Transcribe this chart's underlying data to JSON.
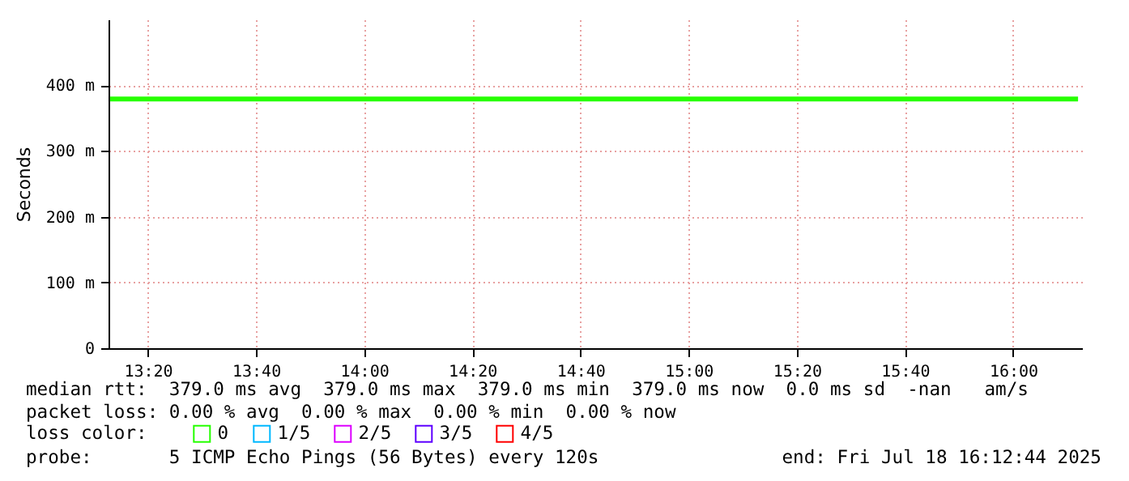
{
  "chart_data": {
    "type": "line",
    "ylabel": "Seconds",
    "x": [
      "2025-07-18T13:13",
      "2025-07-18T16:12"
    ],
    "xlim": [
      "2025-07-18T13:12:44",
      "2025-07-18T16:12:44"
    ],
    "xticks": [
      {
        "value": "2025-07-18T13:20",
        "label": "13:20"
      },
      {
        "value": "2025-07-18T13:40",
        "label": "13:40"
      },
      {
        "value": "2025-07-18T14:00",
        "label": "14:00"
      },
      {
        "value": "2025-07-18T14:20",
        "label": "14:20"
      },
      {
        "value": "2025-07-18T14:40",
        "label": "14:40"
      },
      {
        "value": "2025-07-18T15:00",
        "label": "15:00"
      },
      {
        "value": "2025-07-18T15:20",
        "label": "15:20"
      },
      {
        "value": "2025-07-18T15:40",
        "label": "15:40"
      },
      {
        "value": "2025-07-18T16:00",
        "label": "16:00"
      }
    ],
    "ylim": [
      0,
      500
    ],
    "yticks": [
      0,
      {
        "value": 100,
        "label": "100 m"
      },
      {
        "value": 200,
        "label": "200 m"
      },
      {
        "value": 300,
        "label": "300 m"
      },
      {
        "value": 400,
        "label": "400 m"
      }
    ],
    "series": [
      {
        "name": "0",
        "color": "#26ff00",
        "values": [
          379,
          379
        ]
      },
      {
        "name": "1/5",
        "color": "#00b8ff",
        "values": [
          null,
          null
        ]
      },
      {
        "name": "2/5",
        "color": "#dd00ff",
        "values": [
          null,
          null
        ]
      },
      {
        "name": "3/5",
        "color": "#5e00ff",
        "values": [
          null,
          null
        ]
      },
      {
        "name": "4/5",
        "color": "#ff0000",
        "values": [
          null,
          null
        ]
      }
    ],
    "legend_title": "loss color:",
    "legend": "bottom",
    "grid": true,
    "annotations": [
      "median rtt:  379.0 ms avg  379.0 ms max  379.0 ms min  379.0 ms now  0.0 ms sd  -nan   am/s",
      "packet loss: 0.00 % avg  0.00 % max  0.00 % min  0.00 % now",
      "probe:       5 ICMP Echo Pings (56 Bytes) every 120s",
      "end: Fri Jul 18 16:12:44 2025"
    ]
  }
}
